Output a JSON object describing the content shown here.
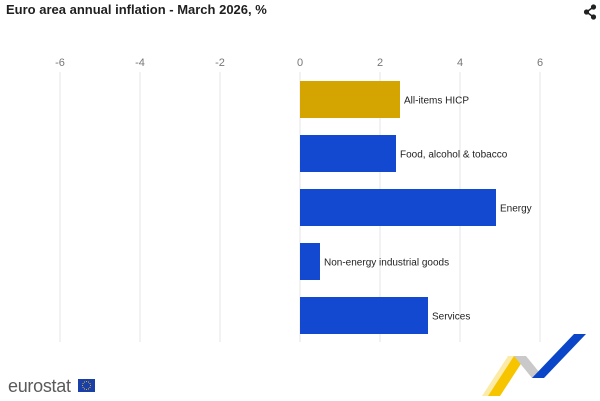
{
  "page": {
    "title": "Euro area annual inflation - March 2026, %",
    "share_icon": "share-icon",
    "logo_text": "eurostat",
    "flag_icon": "eu-flag-icon"
  },
  "colors": {
    "highlight": "#d4a500",
    "bar": "#1349d1",
    "grid": "#e6e6e6",
    "tick_text": "#777777",
    "label_text": "#1f1f1f",
    "wave_yellow": "#f7c500",
    "wave_blue": "#0b45c8",
    "wave_grey": "#c9c9c9"
  },
  "chart_data": {
    "type": "bar",
    "orientation": "horizontal",
    "title": "Euro area annual inflation - March 2026, %",
    "categories": [
      "All-items HICP",
      "Food, alcohol & tobacco",
      "Energy",
      "Non-energy industrial goods",
      "Services"
    ],
    "values": [
      2.5,
      2.4,
      4.9,
      0.5,
      3.2
    ],
    "highlight": [
      true,
      false,
      false,
      false,
      false
    ],
    "xlim": [
      -6,
      6
    ],
    "xticks": [
      -6,
      -4,
      -2,
      0,
      2,
      4,
      6
    ],
    "tick_labels": [
      "-6",
      "-4",
      "-2",
      "0",
      "2",
      "4",
      "6"
    ],
    "grid": true,
    "xlabel": "",
    "ylabel": ""
  }
}
